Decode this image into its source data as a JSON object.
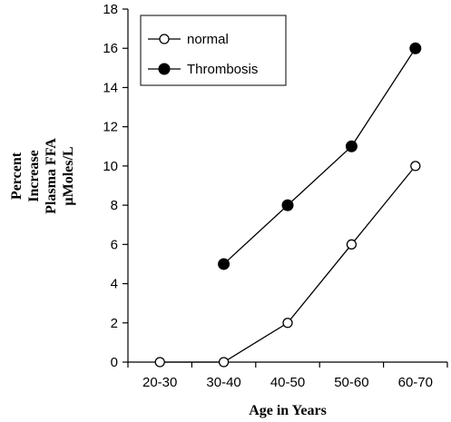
{
  "chart_data": {
    "type": "line",
    "title": "",
    "categories": [
      "20-30",
      "30-40",
      "40-50",
      "50-60",
      "60-70"
    ],
    "xlabel": "Age in Years",
    "ylabel_lines": [
      "Percent",
      "Increase",
      "Plasma FFA",
      "µMoles/L"
    ],
    "ylim": [
      0,
      18
    ],
    "yticks": [
      0,
      2,
      4,
      6,
      8,
      10,
      12,
      14,
      16,
      18
    ],
    "grid": false,
    "legend_position": "top-left",
    "series": [
      {
        "name": "normal",
        "marker": "open-circle",
        "values": [
          0,
          0,
          2,
          6,
          10
        ]
      },
      {
        "name": "Thrombosis",
        "marker": "filled-circle",
        "values": [
          null,
          5,
          8,
          11,
          16
        ]
      }
    ]
  }
}
